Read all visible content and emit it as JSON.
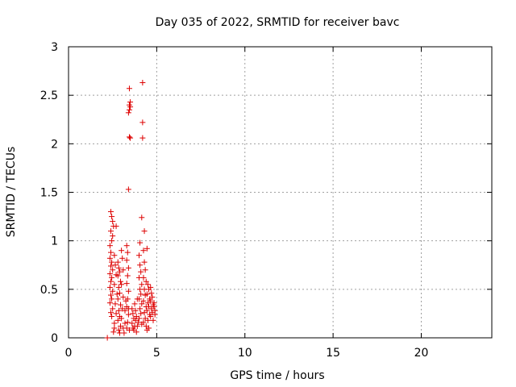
{
  "chart_data": {
    "type": "scatter",
    "title": "Day 035 of 2022, SRMTID for receiver bavc",
    "xlabel": "GPS time / hours",
    "ylabel": "SRMTID / TECUs",
    "xlim": [
      0,
      24
    ],
    "ylim": [
      0,
      3
    ],
    "xticks": [
      "0",
      "5",
      "10",
      "15",
      "20"
    ],
    "yticks": [
      "0",
      "0.5",
      "1",
      "1.5",
      "2",
      "2.5",
      "3"
    ],
    "xtick_values": [
      0,
      5,
      10,
      15,
      20
    ],
    "ytick_values": [
      0,
      0.5,
      1,
      1.5,
      2,
      2.5,
      3
    ],
    "grid": true,
    "marker": "+",
    "color": "#dd0000",
    "series": [
      {
        "name": "SRMTID",
        "points": [
          [
            2.2,
            0.0
          ],
          [
            2.4,
            1.3
          ],
          [
            2.45,
            1.25
          ],
          [
            2.5,
            1.2
          ],
          [
            2.55,
            1.15
          ],
          [
            2.4,
            1.1
          ],
          [
            2.5,
            1.05
          ],
          [
            2.45,
            1.0
          ],
          [
            2.35,
            0.95
          ],
          [
            2.4,
            0.88
          ],
          [
            2.35,
            0.82
          ],
          [
            2.45,
            0.78
          ],
          [
            2.4,
            0.74
          ],
          [
            2.5,
            0.7
          ],
          [
            2.35,
            0.66
          ],
          [
            2.45,
            0.62
          ],
          [
            2.4,
            0.58
          ],
          [
            2.35,
            0.52
          ],
          [
            2.5,
            0.48
          ],
          [
            2.4,
            0.44
          ],
          [
            2.45,
            0.4
          ],
          [
            2.35,
            0.36
          ],
          [
            2.5,
            0.3
          ],
          [
            2.4,
            0.26
          ],
          [
            2.45,
            0.22
          ],
          [
            2.6,
            0.85
          ],
          [
            2.65,
            0.75
          ],
          [
            2.7,
            0.65
          ],
          [
            2.6,
            0.55
          ],
          [
            2.75,
            0.45
          ],
          [
            2.65,
            0.35
          ],
          [
            2.7,
            0.25
          ],
          [
            2.6,
            0.15
          ],
          [
            2.55,
            0.06
          ],
          [
            2.6,
            0.1
          ],
          [
            2.7,
            1.15
          ],
          [
            2.8,
            0.78
          ],
          [
            2.85,
            0.72
          ],
          [
            2.9,
            0.68
          ],
          [
            2.8,
            0.64
          ],
          [
            2.95,
            0.58
          ],
          [
            2.85,
            0.52
          ],
          [
            2.9,
            0.46
          ],
          [
            2.8,
            0.4
          ],
          [
            2.95,
            0.34
          ],
          [
            2.85,
            0.28
          ],
          [
            2.9,
            0.22
          ],
          [
            2.8,
            0.18
          ],
          [
            2.95,
            0.12
          ],
          [
            2.85,
            0.08
          ],
          [
            2.9,
            0.05
          ],
          [
            3.0,
            0.9
          ],
          [
            3.05,
            0.82
          ],
          [
            3.1,
            0.7
          ],
          [
            3.0,
            0.55
          ],
          [
            3.1,
            0.42
          ],
          [
            3.05,
            0.3
          ],
          [
            3.0,
            0.2
          ],
          [
            3.1,
            0.1
          ],
          [
            3.15,
            0.05
          ],
          [
            3.2,
            0.15
          ],
          [
            3.2,
            0.28
          ],
          [
            3.25,
            0.38
          ],
          [
            3.3,
            0.95
          ],
          [
            3.35,
            0.88
          ],
          [
            3.3,
            0.8
          ],
          [
            3.4,
            0.72
          ],
          [
            3.35,
            0.64
          ],
          [
            3.3,
            0.56
          ],
          [
            3.4,
            0.48
          ],
          [
            3.35,
            0.4
          ],
          [
            3.3,
            0.32
          ],
          [
            3.4,
            0.24
          ],
          [
            3.35,
            0.16
          ],
          [
            3.3,
            0.1
          ],
          [
            3.45,
            0.08
          ],
          [
            3.4,
            0.3
          ],
          [
            3.45,
            2.57
          ],
          [
            3.5,
            2.43
          ],
          [
            3.45,
            2.4
          ],
          [
            3.5,
            2.38
          ],
          [
            3.45,
            2.35
          ],
          [
            3.4,
            2.32
          ],
          [
            3.45,
            2.07
          ],
          [
            3.5,
            2.06
          ],
          [
            3.4,
            1.53
          ],
          [
            3.6,
            0.3
          ],
          [
            3.65,
            0.25
          ],
          [
            3.7,
            0.2
          ],
          [
            3.6,
            0.15
          ],
          [
            3.75,
            0.12
          ],
          [
            3.65,
            0.1
          ],
          [
            3.7,
            0.08
          ],
          [
            3.8,
            0.18
          ],
          [
            3.85,
            0.22
          ],
          [
            3.8,
            0.28
          ],
          [
            3.9,
            0.12
          ],
          [
            3.85,
            0.06
          ],
          [
            3.75,
            0.35
          ],
          [
            3.9,
            0.4
          ],
          [
            3.95,
            0.16
          ],
          [
            4.0,
            0.85
          ],
          [
            4.05,
            0.75
          ],
          [
            4.1,
            0.68
          ],
          [
            4.0,
            0.62
          ],
          [
            4.15,
            0.55
          ],
          [
            4.05,
            0.5
          ],
          [
            4.1,
            0.45
          ],
          [
            4.0,
            0.4
          ],
          [
            4.15,
            0.35
          ],
          [
            4.05,
            0.3
          ],
          [
            4.1,
            0.25
          ],
          [
            4.0,
            0.2
          ],
          [
            4.15,
            0.14
          ],
          [
            4.05,
            0.98
          ],
          [
            4.2,
            2.63
          ],
          [
            4.2,
            2.22
          ],
          [
            4.2,
            2.06
          ],
          [
            4.15,
            1.24
          ],
          [
            4.25,
            0.9
          ],
          [
            4.3,
            0.78
          ],
          [
            4.35,
            0.7
          ],
          [
            4.25,
            0.62
          ],
          [
            4.4,
            0.58
          ],
          [
            4.3,
            0.5
          ],
          [
            4.35,
            0.44
          ],
          [
            4.25,
            0.38
          ],
          [
            4.4,
            0.32
          ],
          [
            4.3,
            0.26
          ],
          [
            4.35,
            0.2
          ],
          [
            4.25,
            0.16
          ],
          [
            4.4,
            0.12
          ],
          [
            4.3,
            1.1
          ],
          [
            4.45,
            0.92
          ],
          [
            4.5,
            0.55
          ],
          [
            4.55,
            0.5
          ],
          [
            4.45,
            0.45
          ],
          [
            4.6,
            0.4
          ],
          [
            4.5,
            0.36
          ],
          [
            4.55,
            0.32
          ],
          [
            4.45,
            0.28
          ],
          [
            4.6,
            0.24
          ],
          [
            4.5,
            0.18
          ],
          [
            4.55,
            0.1
          ],
          [
            4.45,
            0.08
          ],
          [
            4.65,
            0.52
          ],
          [
            4.7,
            0.46
          ],
          [
            4.75,
            0.42
          ],
          [
            4.65,
            0.38
          ],
          [
            4.8,
            0.34
          ],
          [
            4.7,
            0.3
          ],
          [
            4.75,
            0.26
          ],
          [
            4.65,
            0.22
          ],
          [
            4.8,
            0.18
          ],
          [
            4.85,
            0.32
          ],
          [
            4.9,
            0.28
          ],
          [
            4.85,
            0.36
          ],
          [
            4.9,
            0.24
          ]
        ]
      }
    ]
  }
}
